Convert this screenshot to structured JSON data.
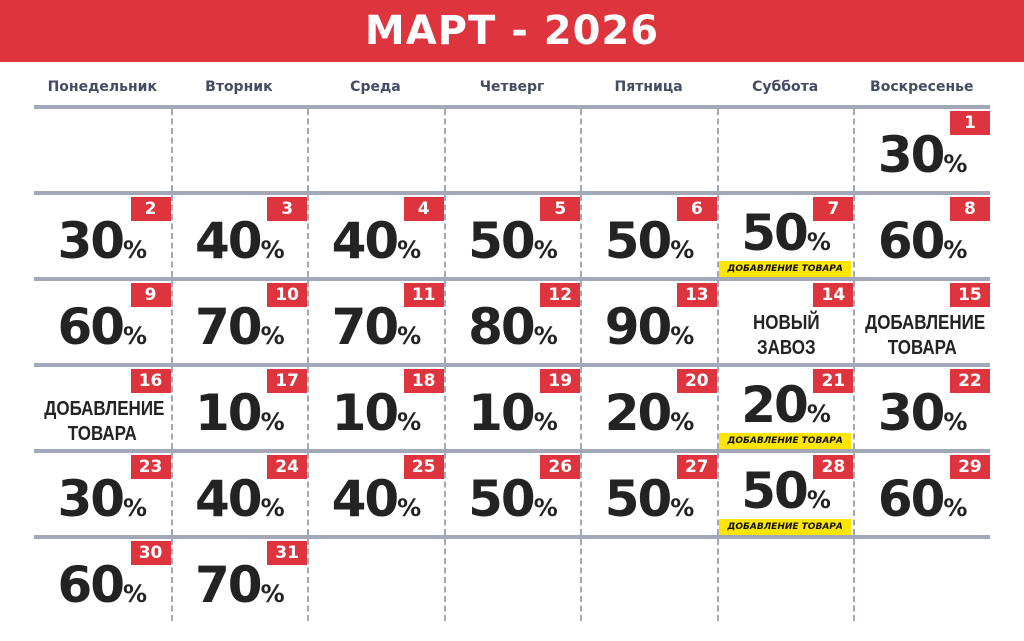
{
  "title": "МАРТ - 2026",
  "weekdays": [
    "Понедельник",
    "Вторник",
    "Среда",
    "Четверг",
    "Пятница",
    "Суббота",
    "Воскресенье"
  ],
  "colors": {
    "accent": "#dd343d",
    "note": "#ffe600",
    "grid": "#a3a8b8"
  },
  "first_weekday_index": 6,
  "days": [
    {
      "day": "1",
      "pct": "30"
    },
    {
      "day": "2",
      "pct": "30"
    },
    {
      "day": "3",
      "pct": "40"
    },
    {
      "day": "4",
      "pct": "40"
    },
    {
      "day": "5",
      "pct": "50"
    },
    {
      "day": "6",
      "pct": "50"
    },
    {
      "day": "7",
      "pct": "50",
      "note": "ДОБАВЛЕНИЕ ТОВАРА"
    },
    {
      "day": "8",
      "pct": "60"
    },
    {
      "day": "9",
      "pct": "60"
    },
    {
      "day": "10",
      "pct": "70"
    },
    {
      "day": "11",
      "pct": "70"
    },
    {
      "day": "12",
      "pct": "80"
    },
    {
      "day": "13",
      "pct": "90"
    },
    {
      "day": "14",
      "text": [
        "НОВЫЙ",
        "ЗАВОЗ"
      ]
    },
    {
      "day": "15",
      "text": [
        "ДОБАВЛЕНИЕ",
        "ТОВАРА"
      ]
    },
    {
      "day": "16",
      "text": [
        "ДОБАВЛЕНИЕ",
        "ТОВАРА"
      ]
    },
    {
      "day": "17",
      "pct": "10"
    },
    {
      "day": "18",
      "pct": "10"
    },
    {
      "day": "19",
      "pct": "10"
    },
    {
      "day": "20",
      "pct": "20"
    },
    {
      "day": "21",
      "pct": "20",
      "note": "ДОБАВЛЕНИЕ ТОВАРА"
    },
    {
      "day": "22",
      "pct": "30"
    },
    {
      "day": "23",
      "pct": "30"
    },
    {
      "day": "24",
      "pct": "40"
    },
    {
      "day": "25",
      "pct": "40"
    },
    {
      "day": "26",
      "pct": "50"
    },
    {
      "day": "27",
      "pct": "50"
    },
    {
      "day": "28",
      "pct": "50",
      "note": "ДОБАВЛЕНИЕ ТОВАРА"
    },
    {
      "day": "29",
      "pct": "60"
    },
    {
      "day": "30",
      "pct": "60"
    },
    {
      "day": "31",
      "pct": "70"
    }
  ],
  "percent_sign": "%"
}
